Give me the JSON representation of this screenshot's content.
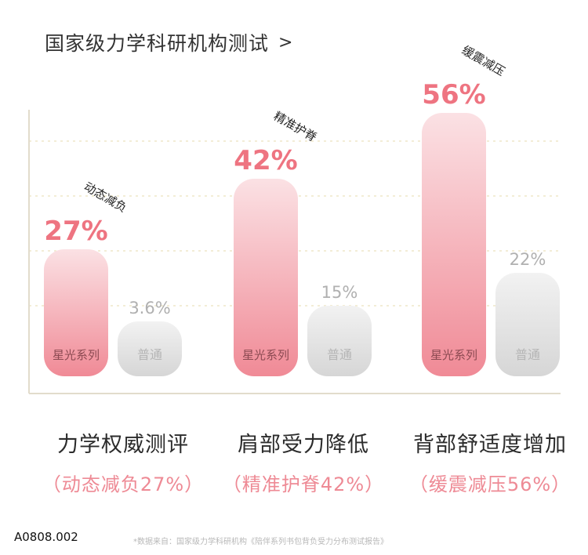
{
  "title": "国家级力学科研机构测试",
  "title_chevron": ">",
  "chart_data": {
    "type": "bar",
    "categories": [
      "力学权威测评",
      "肩部受力降低",
      "背部舒适度增加"
    ],
    "series": [
      {
        "name": "星光系列",
        "values": [
          27,
          42,
          56
        ],
        "value_labels": [
          "27%",
          "42%",
          "56%"
        ],
        "color": "#f08a96"
      },
      {
        "name": "普通",
        "values": [
          3.6,
          15,
          22
        ],
        "value_labels": [
          "3.6%",
          "15%",
          "22%"
        ],
        "color": "#d9d9d9"
      }
    ],
    "annotations": [
      "动态减负",
      "精准护脊",
      "缓震减压"
    ],
    "ylim": [
      0,
      60
    ],
    "grid": true
  },
  "captions": [
    {
      "main": "力学权威测评",
      "sub": "（动态减负27%）"
    },
    {
      "main": "肩部受力降低",
      "sub": "（精准护脊42%）"
    },
    {
      "main": "背部舒适度增加",
      "sub": "（缓震减压56%）"
    }
  ],
  "code": "A0808.002",
  "source_note": "*数据来自：国家级力学科研机构《陪伴系列书包背负受力分布测试报告》"
}
